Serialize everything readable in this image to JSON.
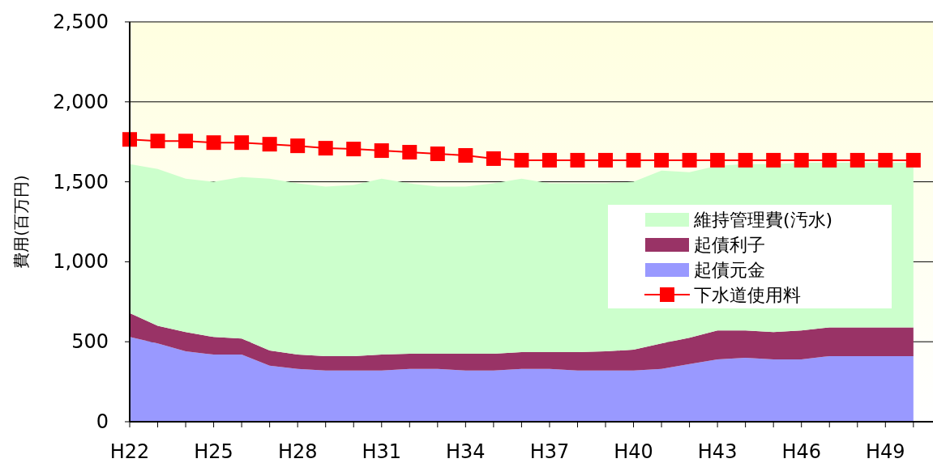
{
  "chart_data": {
    "type": "area",
    "stacked": true,
    "ylabel": "費用(百万円)",
    "categories": [
      "H22",
      null,
      null,
      "H25",
      null,
      null,
      "H28",
      null,
      null,
      "H31",
      null,
      null,
      "H34",
      null,
      null,
      "H37",
      null,
      null,
      "H40",
      null,
      null,
      "H43",
      null,
      null,
      "H46",
      null,
      null,
      "H49",
      null
    ],
    "series": [
      {
        "name": "起債元金",
        "color": "#9999ff",
        "values": [
          530,
          490,
          440,
          420,
          420,
          350,
          330,
          320,
          320,
          320,
          330,
          330,
          320,
          320,
          330,
          330,
          320,
          320,
          320,
          330,
          360,
          390,
          400,
          390,
          390,
          410,
          410,
          410,
          410
        ]
      },
      {
        "name": "起債利子",
        "color": "#993366",
        "values": [
          150,
          110,
          120,
          110,
          100,
          95,
          90,
          90,
          90,
          100,
          95,
          95,
          105,
          105,
          105,
          105,
          115,
          120,
          130,
          160,
          165,
          180,
          170,
          170,
          180,
          180,
          180,
          180,
          180
        ]
      },
      {
        "name": "維持管理費(汚水)",
        "color": "#ccffcc",
        "values": [
          930,
          980,
          960,
          970,
          1010,
          1075,
          1070,
          1060,
          1070,
          1100,
          1065,
          1045,
          1045,
          1065,
          1085,
          1055,
          1055,
          1050,
          1050,
          1080,
          1035,
          1030,
          1040,
          1050,
          1050,
          1030,
          1030,
          1030,
          1030
        ]
      },
      {
        "name": "下水道使用料",
        "type": "line",
        "color": "#ff0000",
        "marker": "square",
        "values": [
          1765,
          1755,
          1755,
          1745,
          1745,
          1735,
          1725,
          1710,
          1705,
          1695,
          1685,
          1675,
          1665,
          1645,
          1635,
          1635,
          1635,
          1635,
          1635,
          1635,
          1635,
          1635,
          1635,
          1635,
          1635,
          1635,
          1635,
          1635,
          1635
        ]
      }
    ],
    "ylim": [
      0,
      2500
    ],
    "yticks": [
      {
        "value": 0,
        "label": "0"
      },
      {
        "value": 500,
        "label": "500"
      },
      {
        "value": 1000,
        "label": "1,000"
      },
      {
        "value": 1500,
        "label": "1,500"
      },
      {
        "value": 2000,
        "label": "2,000"
      },
      {
        "value": 2500,
        "label": "2,500"
      }
    ],
    "grid": "y",
    "legend": "right"
  }
}
